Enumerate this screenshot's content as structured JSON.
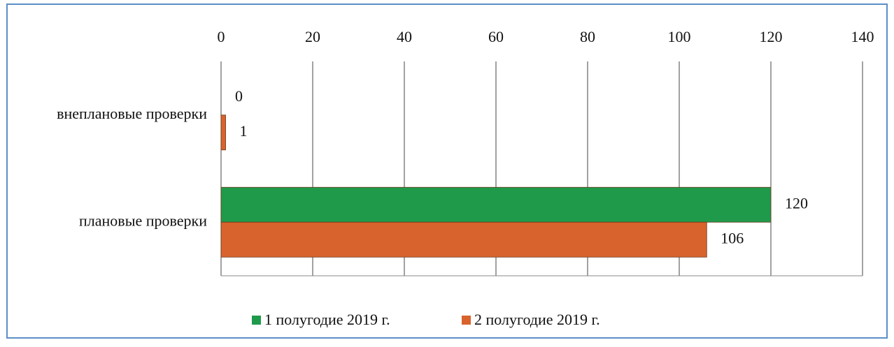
{
  "chart_data": {
    "type": "bar",
    "orientation": "horizontal",
    "categories": [
      "внеплановые проверки",
      "плановые проверки"
    ],
    "series": [
      {
        "name": "1 полугодие 2019 г.",
        "color": "#1f9a4b",
        "values": [
          0,
          120
        ]
      },
      {
        "name": "2 полугодие 2019 г.",
        "color": "#d8632c",
        "values": [
          1,
          106
        ]
      }
    ],
    "xlim": [
      0,
      140
    ],
    "xticks": [
      0,
      20,
      40,
      60,
      80,
      100,
      120,
      140
    ],
    "grid": true,
    "legend": "bottom",
    "data_labels": true
  }
}
